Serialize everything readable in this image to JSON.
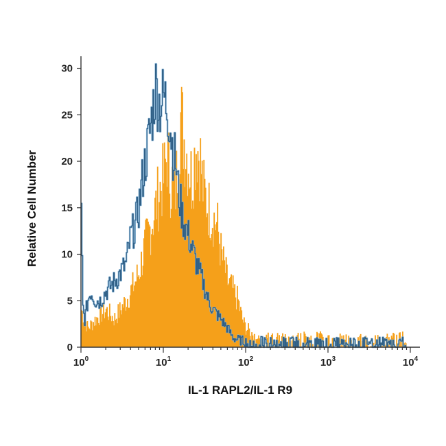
{
  "chart_data": {
    "type": "area",
    "xlabel": "IL-1 RAPL2/IL-1 R9",
    "ylabel": "Relative Cell Number",
    "xscale": "log",
    "xlim": [
      1,
      10000
    ],
    "ylim": [
      0,
      31
    ],
    "x_ticks": [
      {
        "value": 1,
        "base": "10",
        "exp": "0"
      },
      {
        "value": 10,
        "base": "10",
        "exp": "1"
      },
      {
        "value": 100,
        "base": "10",
        "exp": "2"
      },
      {
        "value": 1000,
        "base": "10",
        "exp": "3"
      },
      {
        "value": 10000,
        "base": "10",
        "exp": "4"
      }
    ],
    "y_ticks": [
      {
        "value": 0,
        "label": "0"
      },
      {
        "value": 5,
        "label": "5"
      },
      {
        "value": 10,
        "label": "10"
      },
      {
        "value": 15,
        "label": "15"
      },
      {
        "value": 20,
        "label": "20"
      },
      {
        "value": 25,
        "label": "25"
      },
      {
        "value": 30,
        "label": "30"
      }
    ],
    "colors": {
      "filled": "#f5a01a",
      "outline": "#2f5f86",
      "outline_highlight": "#7fb4dc"
    },
    "series": [
      {
        "style": "filled",
        "x": [
          1,
          1.2,
          1.5,
          2,
          2.5,
          3,
          3.5,
          4,
          4.5,
          5,
          6,
          7,
          8,
          9,
          10,
          11,
          12,
          14,
          16,
          18,
          20,
          22,
          25,
          28,
          30,
          35,
          40,
          45,
          50,
          60,
          70,
          80,
          90,
          100,
          120,
          150,
          200,
          300,
          500,
          1000,
          2000,
          5000,
          8000,
          9000
        ],
        "y": [
          4,
          2,
          3,
          4,
          3,
          4,
          5,
          6,
          7,
          8,
          11,
          13,
          15,
          17,
          18,
          21,
          18,
          17,
          25,
          22,
          20,
          18,
          22,
          20,
          17,
          15,
          14,
          13,
          10,
          7,
          6,
          5,
          3,
          2,
          1.5,
          1,
          1,
          0.8,
          1,
          1,
          0.8,
          0.8,
          1,
          0
        ]
      },
      {
        "style": "outline",
        "x": [
          1,
          1.05,
          1.1,
          1.2,
          1.3,
          1.5,
          1.7,
          2,
          2.5,
          3,
          3.5,
          4,
          4.5,
          5,
          5.5,
          6,
          6.5,
          7,
          7.5,
          8,
          8.5,
          9,
          10,
          11,
          12,
          13,
          14,
          15,
          17,
          20,
          25,
          30,
          35,
          40,
          50,
          60,
          70,
          80,
          100,
          150,
          200,
          300,
          500,
          1000,
          2000,
          5000,
          9000
        ],
        "y": [
          14,
          4,
          3,
          5,
          6,
          5,
          5,
          6,
          7,
          8,
          9,
          12,
          13,
          15,
          18,
          20,
          22,
          24,
          26,
          28,
          27,
          26,
          27,
          26,
          24,
          21,
          20,
          17,
          14,
          12,
          9,
          7,
          5,
          4,
          3,
          2,
          1,
          0.8,
          0.6,
          0.6,
          0.6,
          0.6,
          0.6,
          0.6,
          0.6,
          0.6,
          0.6
        ]
      }
    ]
  }
}
